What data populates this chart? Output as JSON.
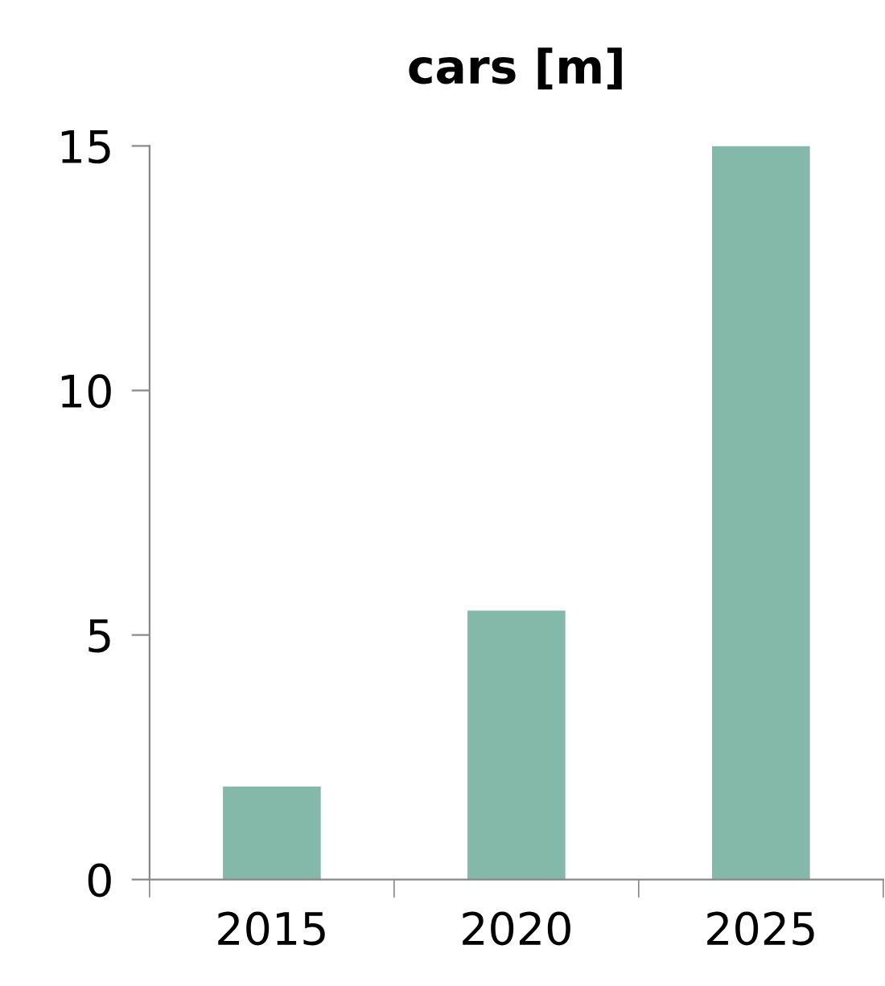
{
  "chart_data": {
    "type": "bar",
    "title": "cars [m]",
    "categories": [
      "2015",
      "2020",
      "2025"
    ],
    "values": [
      1.9,
      5.5,
      15
    ],
    "color": "#84b8a8",
    "ylim": [
      0,
      15
    ],
    "yticks": [
      0,
      5,
      10,
      15
    ],
    "grid": false,
    "legend": false
  }
}
